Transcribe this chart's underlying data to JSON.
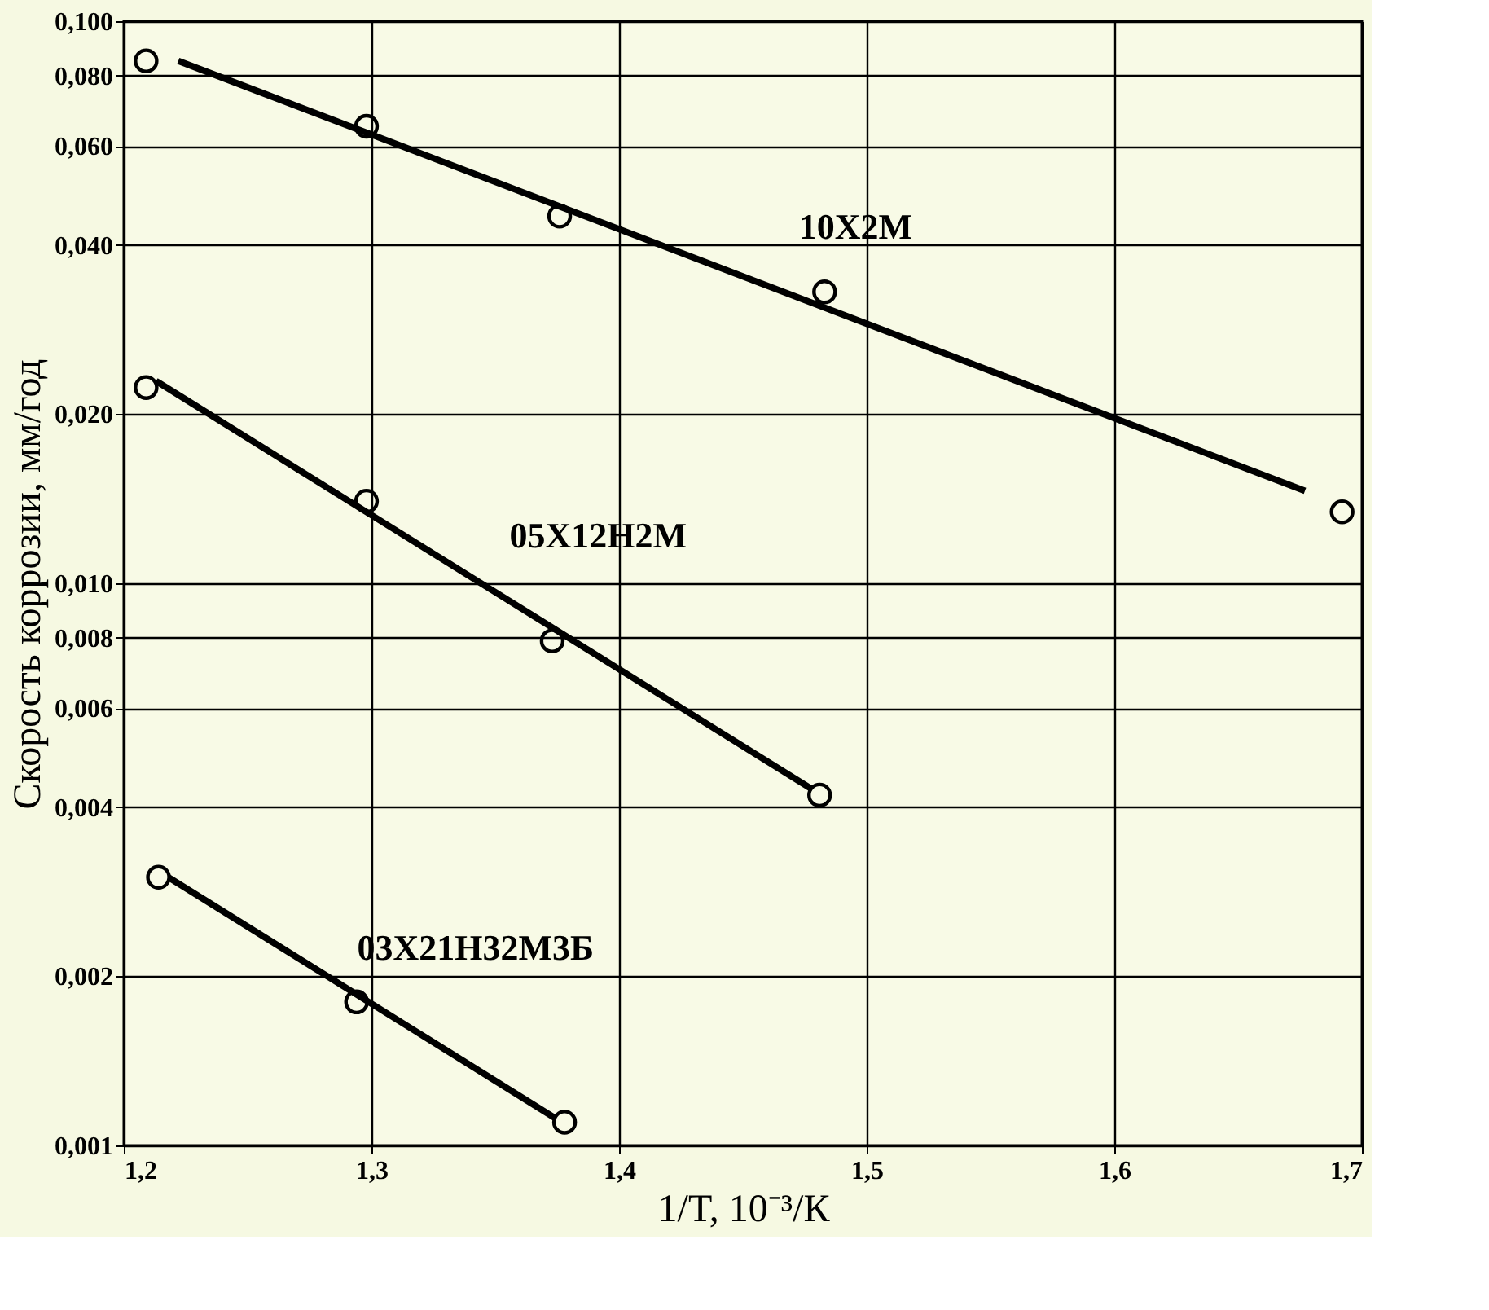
{
  "chart_data": {
    "type": "scatter",
    "xlabel": "1/T, 10⁻³/К",
    "ylabel": "Скорость коррозии, мм/год",
    "log": "y",
    "grid": true,
    "legend": false,
    "xlim": [
      1.2,
      1.7
    ],
    "ylim": [
      0.001,
      0.1
    ],
    "xticks": [
      {
        "value": 1.2,
        "label": "1,2"
      },
      {
        "value": 1.3,
        "label": "1,3"
      },
      {
        "value": 1.4,
        "label": "1,4"
      },
      {
        "value": 1.5,
        "label": "1,5"
      },
      {
        "value": 1.6,
        "label": "1,6"
      },
      {
        "value": 1.7,
        "label": "1,7"
      }
    ],
    "yticks": [
      {
        "value": 0.001,
        "label": "0,001"
      },
      {
        "value": 0.002,
        "label": "0,002"
      },
      {
        "value": 0.004,
        "label": "0,004"
      },
      {
        "value": 0.006,
        "label": "0,006"
      },
      {
        "value": 0.008,
        "label": "0,008"
      },
      {
        "value": 0.01,
        "label": "0,010"
      },
      {
        "value": 0.02,
        "label": "0,020"
      },
      {
        "value": 0.04,
        "label": "0,040"
      },
      {
        "value": 0.06,
        "label": "0,060"
      },
      {
        "value": 0.08,
        "label": "0,080"
      },
      {
        "value": 0.1,
        "label": "0,100"
      }
    ],
    "series": [
      {
        "type": "scatter",
        "marker": "circle",
        "color": "#000000",
        "x": [
          1.209,
          1.298,
          1.376,
          1.483,
          1.692
        ],
        "values": [
          0.085,
          0.065,
          0.045,
          0.033,
          0.0134
        ]
      },
      {
        "type": "line",
        "name": "10X2M",
        "line_style": "solid",
        "color": "#000000",
        "x": [
          1.222,
          1.677
        ],
        "values": [
          0.085,
          0.0146
        ]
      },
      {
        "type": "scatter",
        "marker": "circle",
        "color": "#000000",
        "x": [
          1.209,
          1.298,
          1.373,
          1.481
        ],
        "values": [
          0.0223,
          0.014,
          0.0079,
          0.0042
        ]
      },
      {
        "type": "line",
        "name": "05X12H2M",
        "line_style": "solid",
        "color": "#000000",
        "x": [
          1.213,
          1.478
        ],
        "values": [
          0.0229,
          0.0043
        ]
      },
      {
        "type": "scatter",
        "marker": "circle",
        "color": "#000000",
        "x": [
          1.214,
          1.294,
          1.378
        ],
        "values": [
          0.003,
          0.0018,
          0.0011
        ]
      },
      {
        "type": "line",
        "name": "03X21H32M3Б",
        "line_style": "solid",
        "color": "#000000",
        "x": [
          1.218,
          1.374
        ],
        "values": [
          0.003,
          0.00112
        ]
      }
    ]
  }
}
